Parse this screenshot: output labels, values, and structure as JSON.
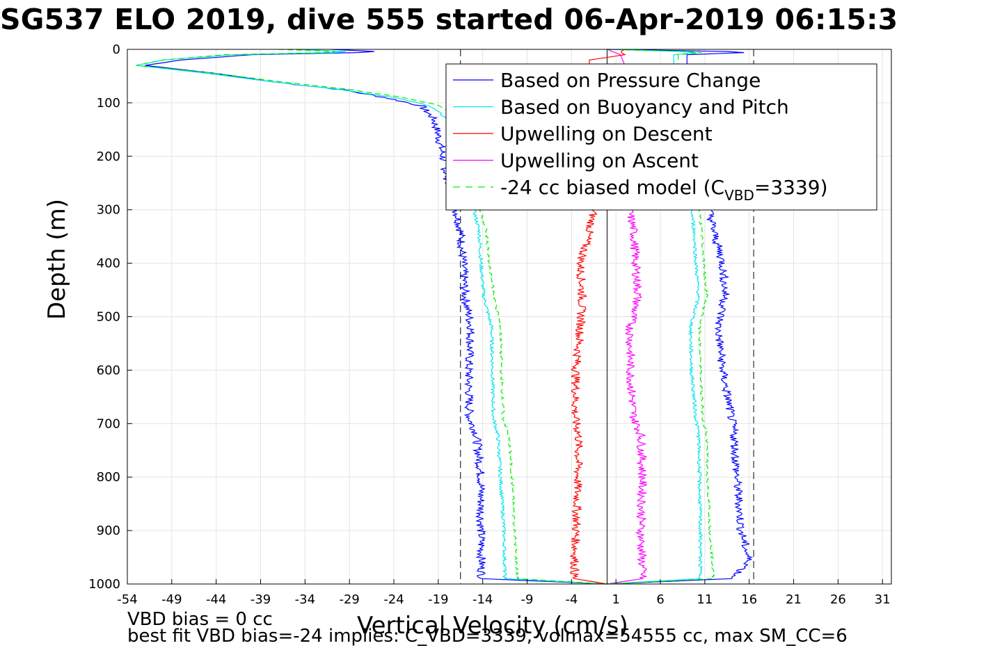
{
  "chart_data": {
    "type": "line",
    "title": "SG537 ELO 2019, dive 555 started 06-Apr-2019 06:15:3",
    "xlabel": "Vertical Velocity (cm/s)",
    "ylabel": "Depth (m)",
    "xlim": [
      -54,
      32
    ],
    "ylim": [
      0,
      1000
    ],
    "y_reversed": true,
    "grid": true,
    "x_ticks": [
      -54,
      -49,
      -44,
      -39,
      -34,
      -29,
      -24,
      -19,
      -14,
      -9,
      -4,
      1,
      6,
      11,
      16,
      21,
      26,
      31
    ],
    "y_ticks": [
      0,
      100,
      200,
      300,
      400,
      500,
      600,
      700,
      800,
      900,
      1000
    ],
    "legend_position": "top-right",
    "reference_lines": {
      "zero_line_x": 0,
      "dashed_lines_x": [
        -16.5,
        16.5
      ]
    },
    "series": [
      {
        "name": "Based on Pressure Change",
        "color": "#0000ff",
        "style": "solid",
        "points": [
          [
            -31,
            0
          ],
          [
            -25,
            5
          ],
          [
            -40,
            10
          ],
          [
            -48,
            20
          ],
          [
            -52,
            30
          ],
          [
            -44,
            45
          ],
          [
            -38,
            60
          ],
          [
            -30,
            75
          ],
          [
            -25,
            90
          ],
          [
            -21,
            105
          ],
          [
            -19.5,
            130
          ],
          [
            -19,
            160
          ],
          [
            -18.5,
            200
          ],
          [
            -18,
            240
          ],
          [
            -17,
            300
          ],
          [
            -16.5,
            340
          ],
          [
            -16.2,
            400
          ],
          [
            -16,
            460
          ],
          [
            -15.3,
            520
          ],
          [
            -15.6,
            600
          ],
          [
            -15.5,
            690
          ],
          [
            -14.7,
            720
          ],
          [
            -14.2,
            800
          ],
          [
            -14.2,
            900
          ],
          [
            -14.1,
            990
          ],
          [
            0,
            1000
          ]
        ]
      },
      {
        "name": "Based on Buoyancy and Pitch",
        "color": "#00e5ee",
        "style": "solid",
        "points": [
          [
            -35,
            0
          ],
          [
            -28,
            5
          ],
          [
            -42,
            10
          ],
          [
            -50,
            20
          ],
          [
            -53,
            30
          ],
          [
            -45,
            45
          ],
          [
            -38,
            60
          ],
          [
            -30,
            75
          ],
          [
            -24,
            90
          ],
          [
            -20,
            105
          ],
          [
            -18,
            130
          ],
          [
            -17.8,
            160
          ],
          [
            -17.5,
            200
          ],
          [
            -16.5,
            250
          ],
          [
            -15,
            300
          ],
          [
            -14.4,
            340
          ],
          [
            -14.2,
            400
          ],
          [
            -13.9,
            460
          ],
          [
            -13,
            520
          ],
          [
            -12.9,
            600
          ],
          [
            -12.8,
            690
          ],
          [
            -12.3,
            720
          ],
          [
            -12,
            800
          ],
          [
            -11.6,
            900
          ],
          [
            -11.5,
            990
          ],
          [
            0,
            1000
          ]
        ]
      },
      {
        "name": "Upwelling on Descent",
        "color": "#ff0000",
        "style": "solid",
        "points": [
          [
            2,
            0
          ],
          [
            1.5,
            5
          ],
          [
            2,
            10
          ],
          [
            -2,
            20
          ],
          [
            -2,
            60
          ],
          [
            -2.2,
            100
          ],
          [
            -1.8,
            150
          ],
          [
            -2,
            200
          ],
          [
            -1.8,
            260
          ],
          [
            -1.5,
            300
          ],
          [
            -2,
            340
          ],
          [
            -3,
            400
          ],
          [
            -2.8,
            460
          ],
          [
            -3,
            520
          ],
          [
            -3.5,
            600
          ],
          [
            -3.6,
            690
          ],
          [
            -3.2,
            720
          ],
          [
            -3.3,
            800
          ],
          [
            -3.5,
            900
          ],
          [
            -3.7,
            990
          ],
          [
            0,
            1000
          ]
        ]
      },
      {
        "name": "Upwelling on Ascent",
        "color": "#ff00ff",
        "style": "solid",
        "points": [
          [
            0,
            0
          ],
          [
            1.5,
            10
          ],
          [
            2,
            30
          ],
          [
            2,
            60
          ],
          [
            2.5,
            100
          ],
          [
            2.5,
            150
          ],
          [
            3,
            200
          ],
          [
            3.5,
            260
          ],
          [
            2.5,
            300
          ],
          [
            3,
            340
          ],
          [
            3.2,
            400
          ],
          [
            3.5,
            460
          ],
          [
            2.6,
            520
          ],
          [
            2.6,
            600
          ],
          [
            3,
            690
          ],
          [
            3.8,
            720
          ],
          [
            4,
            800
          ],
          [
            3.8,
            900
          ],
          [
            4,
            990
          ],
          [
            0,
            1000
          ]
        ]
      },
      {
        "name": "-24 cc biased model (C_VBD=3339)",
        "color": "#00ee00",
        "style": "dashed",
        "points": [
          [
            -37,
            0
          ],
          [
            -29,
            5
          ],
          [
            -43,
            10
          ],
          [
            -50,
            20
          ],
          [
            -53,
            30
          ],
          [
            -44,
            45
          ],
          [
            -37,
            60
          ],
          [
            -29,
            75
          ],
          [
            -23,
            90
          ],
          [
            -18.8,
            105
          ],
          [
            -17,
            130
          ],
          [
            -16.8,
            160
          ],
          [
            -16.5,
            200
          ],
          [
            -15.5,
            250
          ],
          [
            -14.3,
            300
          ],
          [
            -13.6,
            340
          ],
          [
            -13.3,
            400
          ],
          [
            -12.7,
            460
          ],
          [
            -12,
            520
          ],
          [
            -11.9,
            600
          ],
          [
            -11.7,
            690
          ],
          [
            -11.1,
            720
          ],
          [
            -10.7,
            800
          ],
          [
            -10.4,
            900
          ],
          [
            -10.1,
            990
          ],
          [
            0,
            1000
          ]
        ]
      }
    ],
    "mirror_series_note": "ascent branches mirror the descent ones",
    "ascent_series": [
      {
        "color": "#0000ff",
        "points": [
          [
            0,
            0
          ],
          [
            17,
            5
          ],
          [
            9,
            10
          ],
          [
            9,
            30
          ],
          [
            9.5,
            60
          ],
          [
            9.5,
            100
          ],
          [
            10,
            150
          ],
          [
            10.5,
            200
          ],
          [
            11,
            260
          ],
          [
            11.5,
            300
          ],
          [
            12,
            340
          ],
          [
            13,
            400
          ],
          [
            13.3,
            460
          ],
          [
            12.5,
            520
          ],
          [
            13,
            600
          ],
          [
            14,
            690
          ],
          [
            14.3,
            720
          ],
          [
            14.6,
            800
          ],
          [
            15.1,
            900
          ],
          [
            16,
            960
          ],
          [
            14,
            990
          ],
          [
            0,
            1000
          ]
        ]
      },
      {
        "color": "#00e5ee",
        "points": [
          [
            0,
            0
          ],
          [
            10.6,
            5
          ],
          [
            7.5,
            10
          ],
          [
            7.5,
            30
          ],
          [
            8,
            60
          ],
          [
            8,
            100
          ],
          [
            8.5,
            150
          ],
          [
            9,
            200
          ],
          [
            9.5,
            260
          ],
          [
            9.5,
            300
          ],
          [
            9.8,
            340
          ],
          [
            10,
            400
          ],
          [
            10.3,
            460
          ],
          [
            9.4,
            520
          ],
          [
            9.5,
            600
          ],
          [
            10,
            690
          ],
          [
            10.3,
            720
          ],
          [
            10.4,
            800
          ],
          [
            10.5,
            900
          ],
          [
            10.5,
            990
          ],
          [
            0,
            1000
          ]
        ]
      },
      {
        "color": "#00ee00",
        "points": [
          [
            0,
            0
          ],
          [
            11.3,
            5
          ],
          [
            8,
            10
          ],
          [
            8,
            30
          ],
          [
            8.5,
            60
          ],
          [
            8.5,
            100
          ],
          [
            9,
            150
          ],
          [
            9.5,
            200
          ],
          [
            10,
            260
          ],
          [
            10.4,
            300
          ],
          [
            10.6,
            340
          ],
          [
            10.9,
            400
          ],
          [
            11.2,
            460
          ],
          [
            10.4,
            520
          ],
          [
            10.5,
            600
          ],
          [
            10.8,
            690
          ],
          [
            11.2,
            720
          ],
          [
            11.3,
            800
          ],
          [
            11.6,
            900
          ],
          [
            12,
            990
          ],
          [
            0,
            1000
          ]
        ]
      }
    ]
  },
  "footer": {
    "vbd_bias": "VBD bias = 0 cc",
    "best_fit": "best fit VBD bias=-24 implies: C_VBD=3339, volmax=54555 cc, max SM_CC=6"
  },
  "legend": {
    "items": [
      {
        "label": "Based on Pressure Change",
        "color": "#0000ff",
        "dashed": false
      },
      {
        "label": "Based on Buoyancy and Pitch",
        "color": "#00e5ee",
        "dashed": false
      },
      {
        "label": "Upwelling on Descent",
        "color": "#ff0000",
        "dashed": false
      },
      {
        "label": "Upwelling on Ascent",
        "color": "#ff00ff",
        "dashed": false
      },
      {
        "label": "-24 cc biased model (C",
        "sub": "VBD",
        "suffix": "=3339)",
        "color": "#00ee00",
        "dashed": true
      }
    ]
  }
}
